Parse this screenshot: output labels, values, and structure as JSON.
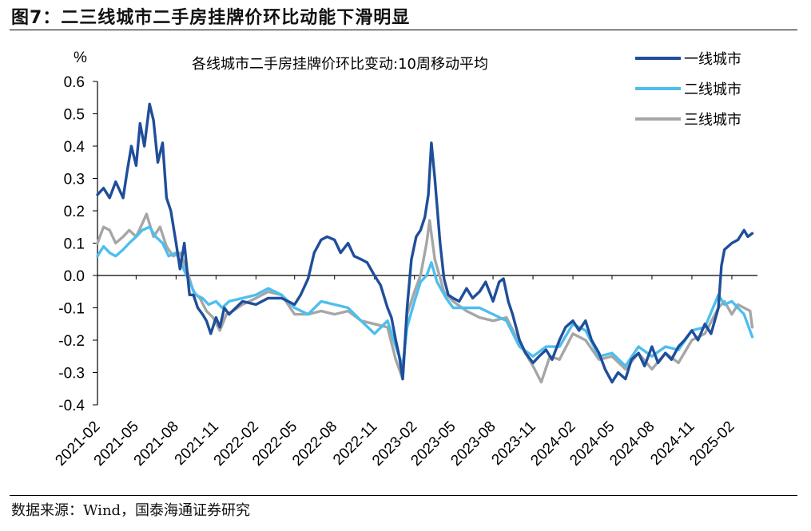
{
  "figure": {
    "title": "图7：二三线城市二手房挂牌价环比动能下滑明显",
    "source": "数据来源：Wind，国泰海通证券研究"
  },
  "chart_data": {
    "type": "line",
    "title": "各线城市二手房挂牌价环比变动:10周移动平均",
    "ylabel": "%",
    "ylim": [
      -0.4,
      0.6
    ],
    "yticks": [
      "0.6",
      "0.5",
      "0.4",
      "0.3",
      "0.2",
      "0.1",
      "0.0",
      "-0.1",
      "-0.2",
      "-0.3",
      "-0.4"
    ],
    "xlim": [
      "2021-02",
      "2025-04"
    ],
    "xticks": [
      "2021-02",
      "2021-05",
      "2021-08",
      "2021-11",
      "2022-02",
      "2022-05",
      "2022-08",
      "2022-11",
      "2023-02",
      "2023-05",
      "2023-08",
      "2023-11",
      "2024-02",
      "2024-05",
      "2024-08",
      "2024-11",
      "2025-02"
    ],
    "legend_position": "top-right",
    "grid": false,
    "series": [
      {
        "name": "一线城市",
        "color": "#1F4E9A",
        "points": [
          [
            "2021-02-01",
            0.25
          ],
          [
            "2021-02-15",
            0.27
          ],
          [
            "2021-03-01",
            0.24
          ],
          [
            "2021-03-15",
            0.29
          ],
          [
            "2021-04-01",
            0.24
          ],
          [
            "2021-04-10",
            0.32
          ],
          [
            "2021-04-20",
            0.4
          ],
          [
            "2021-05-01",
            0.34
          ],
          [
            "2021-05-10",
            0.47
          ],
          [
            "2021-05-20",
            0.4
          ],
          [
            "2021-06-01",
            0.53
          ],
          [
            "2021-06-10",
            0.48
          ],
          [
            "2021-06-20",
            0.35
          ],
          [
            "2021-07-01",
            0.41
          ],
          [
            "2021-07-10",
            0.24
          ],
          [
            "2021-07-20",
            0.2
          ],
          [
            "2021-08-01",
            0.1
          ],
          [
            "2021-08-10",
            0.02
          ],
          [
            "2021-08-20",
            0.1
          ],
          [
            "2021-09-01",
            -0.06
          ],
          [
            "2021-09-10",
            -0.06
          ],
          [
            "2021-09-20",
            -0.1
          ],
          [
            "2021-10-01",
            -0.12
          ],
          [
            "2021-10-10",
            -0.14
          ],
          [
            "2021-10-20",
            -0.18
          ],
          [
            "2021-11-01",
            -0.13
          ],
          [
            "2021-11-10",
            -0.16
          ],
          [
            "2021-11-20",
            -0.1
          ],
          [
            "2021-12-01",
            -0.12
          ],
          [
            "2022-01-01",
            -0.08
          ],
          [
            "2022-02-01",
            -0.09
          ],
          [
            "2022-03-01",
            -0.07
          ],
          [
            "2022-04-01",
            -0.07
          ],
          [
            "2022-05-01",
            -0.09
          ],
          [
            "2022-05-15",
            -0.06
          ],
          [
            "2022-06-01",
            -0.01
          ],
          [
            "2022-06-15",
            0.07
          ],
          [
            "2022-07-01",
            0.11
          ],
          [
            "2022-07-15",
            0.12
          ],
          [
            "2022-08-01",
            0.11
          ],
          [
            "2022-08-15",
            0.07
          ],
          [
            "2022-09-01",
            0.1
          ],
          [
            "2022-09-15",
            0.06
          ],
          [
            "2022-10-01",
            0.05
          ],
          [
            "2022-10-15",
            0.04
          ],
          [
            "2022-11-01",
            0.0
          ],
          [
            "2022-11-15",
            -0.03
          ],
          [
            "2022-12-01",
            -0.1
          ],
          [
            "2022-12-10",
            -0.13
          ],
          [
            "2022-12-20",
            -0.2
          ],
          [
            "2022-12-28",
            -0.25
          ],
          [
            "2023-01-05",
            -0.32
          ],
          [
            "2023-01-15",
            -0.1
          ],
          [
            "2023-01-25",
            0.05
          ],
          [
            "2023-02-05",
            0.12
          ],
          [
            "2023-02-15",
            0.14
          ],
          [
            "2023-02-25",
            0.18
          ],
          [
            "2023-03-05",
            0.25
          ],
          [
            "2023-03-12",
            0.41
          ],
          [
            "2023-03-20",
            0.3
          ],
          [
            "2023-04-01",
            0.1
          ],
          [
            "2023-04-10",
            -0.01
          ],
          [
            "2023-04-20",
            -0.06
          ],
          [
            "2023-05-01",
            -0.07
          ],
          [
            "2023-05-15",
            -0.08
          ],
          [
            "2023-06-01",
            -0.04
          ],
          [
            "2023-06-15",
            -0.07
          ],
          [
            "2023-07-01",
            -0.05
          ],
          [
            "2023-07-15",
            -0.02
          ],
          [
            "2023-08-01",
            -0.08
          ],
          [
            "2023-08-15",
            -0.02
          ],
          [
            "2023-08-25",
            -0.01
          ],
          [
            "2023-09-05",
            -0.08
          ],
          [
            "2023-09-15",
            -0.12
          ],
          [
            "2023-10-01",
            -0.2
          ],
          [
            "2023-10-15",
            -0.24
          ],
          [
            "2023-11-01",
            -0.27
          ],
          [
            "2023-11-15",
            -0.25
          ],
          [
            "2023-12-01",
            -0.23
          ],
          [
            "2023-12-15",
            -0.26
          ],
          [
            "2024-01-01",
            -0.2
          ],
          [
            "2024-01-15",
            -0.16
          ],
          [
            "2024-02-01",
            -0.14
          ],
          [
            "2024-02-15",
            -0.17
          ],
          [
            "2024-03-01",
            -0.14
          ],
          [
            "2024-03-15",
            -0.2
          ],
          [
            "2024-04-01",
            -0.24
          ],
          [
            "2024-04-15",
            -0.29
          ],
          [
            "2024-05-01",
            -0.33
          ],
          [
            "2024-05-15",
            -0.3
          ],
          [
            "2024-06-01",
            -0.32
          ],
          [
            "2024-06-15",
            -0.26
          ],
          [
            "2024-07-01",
            -0.24
          ],
          [
            "2024-07-15",
            -0.28
          ],
          [
            "2024-08-01",
            -0.22
          ],
          [
            "2024-08-15",
            -0.27
          ],
          [
            "2024-09-01",
            -0.24
          ],
          [
            "2024-09-15",
            -0.26
          ],
          [
            "2024-10-01",
            -0.22
          ],
          [
            "2024-10-15",
            -0.2
          ],
          [
            "2024-11-01",
            -0.17
          ],
          [
            "2024-11-15",
            -0.2
          ],
          [
            "2024-12-01",
            -0.15
          ],
          [
            "2024-12-15",
            -0.18
          ],
          [
            "2025-01-01",
            -0.1
          ],
          [
            "2025-01-08",
            0.03
          ],
          [
            "2025-01-15",
            0.08
          ],
          [
            "2025-02-01",
            0.1
          ],
          [
            "2025-02-15",
            0.11
          ],
          [
            "2025-03-01",
            0.14
          ],
          [
            "2025-03-10",
            0.12
          ],
          [
            "2025-03-20",
            0.13
          ]
        ]
      },
      {
        "name": "二线城市",
        "color": "#4DBEEE",
        "points": [
          [
            "2021-02-01",
            0.06
          ],
          [
            "2021-02-15",
            0.09
          ],
          [
            "2021-03-01",
            0.07
          ],
          [
            "2021-03-15",
            0.06
          ],
          [
            "2021-04-01",
            0.08
          ],
          [
            "2021-04-15",
            0.1
          ],
          [
            "2021-05-01",
            0.12
          ],
          [
            "2021-05-15",
            0.14
          ],
          [
            "2021-06-01",
            0.15
          ],
          [
            "2021-06-15",
            0.12
          ],
          [
            "2021-07-01",
            0.1
          ],
          [
            "2021-07-15",
            0.06
          ],
          [
            "2021-08-01",
            0.07
          ],
          [
            "2021-08-15",
            0.03
          ],
          [
            "2021-09-01",
            -0.02
          ],
          [
            "2021-09-15",
            -0.06
          ],
          [
            "2021-10-01",
            -0.07
          ],
          [
            "2021-10-15",
            -0.09
          ],
          [
            "2021-11-01",
            -0.08
          ],
          [
            "2021-11-15",
            -0.1
          ],
          [
            "2021-12-01",
            -0.08
          ],
          [
            "2022-01-01",
            -0.07
          ],
          [
            "2022-02-01",
            -0.06
          ],
          [
            "2022-03-01",
            -0.04
          ],
          [
            "2022-04-01",
            -0.06
          ],
          [
            "2022-05-01",
            -0.1
          ],
          [
            "2022-06-01",
            -0.12
          ],
          [
            "2022-07-01",
            -0.08
          ],
          [
            "2022-08-01",
            -0.09
          ],
          [
            "2022-09-01",
            -0.1
          ],
          [
            "2022-10-01",
            -0.14
          ],
          [
            "2022-11-01",
            -0.18
          ],
          [
            "2022-12-01",
            -0.14
          ],
          [
            "2022-12-20",
            -0.22
          ],
          [
            "2023-01-05",
            -0.28
          ],
          [
            "2023-01-15",
            -0.16
          ],
          [
            "2023-02-01",
            -0.08
          ],
          [
            "2023-02-15",
            -0.02
          ],
          [
            "2023-03-01",
            0.0
          ],
          [
            "2023-03-12",
            0.04
          ],
          [
            "2023-03-25",
            -0.02
          ],
          [
            "2023-04-15",
            -0.07
          ],
          [
            "2023-05-01",
            -0.1
          ],
          [
            "2023-06-01",
            -0.1
          ],
          [
            "2023-07-01",
            -0.1
          ],
          [
            "2023-08-01",
            -0.12
          ],
          [
            "2023-09-01",
            -0.14
          ],
          [
            "2023-10-01",
            -0.22
          ],
          [
            "2023-11-01",
            -0.25
          ],
          [
            "2023-12-01",
            -0.22
          ],
          [
            "2024-01-01",
            -0.22
          ],
          [
            "2024-02-01",
            -0.15
          ],
          [
            "2024-03-01",
            -0.17
          ],
          [
            "2024-04-01",
            -0.25
          ],
          [
            "2024-05-01",
            -0.24
          ],
          [
            "2024-06-01",
            -0.28
          ],
          [
            "2024-07-01",
            -0.22
          ],
          [
            "2024-08-01",
            -0.25
          ],
          [
            "2024-09-01",
            -0.22
          ],
          [
            "2024-10-01",
            -0.23
          ],
          [
            "2024-11-01",
            -0.17
          ],
          [
            "2024-12-01",
            -0.16
          ],
          [
            "2025-01-01",
            -0.06
          ],
          [
            "2025-01-15",
            -0.09
          ],
          [
            "2025-02-01",
            -0.08
          ],
          [
            "2025-02-15",
            -0.1
          ],
          [
            "2025-03-01",
            -0.12
          ],
          [
            "2025-03-20",
            -0.19
          ]
        ]
      },
      {
        "name": "三线城市",
        "color": "#A6A6A6",
        "points": [
          [
            "2021-02-01",
            0.1
          ],
          [
            "2021-02-15",
            0.15
          ],
          [
            "2021-03-01",
            0.14
          ],
          [
            "2021-03-15",
            0.1
          ],
          [
            "2021-04-01",
            0.12
          ],
          [
            "2021-04-15",
            0.14
          ],
          [
            "2021-05-01",
            0.12
          ],
          [
            "2021-05-15",
            0.16
          ],
          [
            "2021-05-25",
            0.19
          ],
          [
            "2021-06-10",
            0.12
          ],
          [
            "2021-06-25",
            0.15
          ],
          [
            "2021-07-10",
            0.09
          ],
          [
            "2021-07-25",
            0.06
          ],
          [
            "2021-08-10",
            0.07
          ],
          [
            "2021-08-25",
            0.02
          ],
          [
            "2021-09-10",
            -0.05
          ],
          [
            "2021-09-25",
            -0.07
          ],
          [
            "2021-10-10",
            -0.11
          ],
          [
            "2021-10-25",
            -0.13
          ],
          [
            "2021-11-10",
            -0.17
          ],
          [
            "2021-11-25",
            -0.12
          ],
          [
            "2021-12-10",
            -0.11
          ],
          [
            "2022-01-01",
            -0.09
          ],
          [
            "2022-02-01",
            -0.07
          ],
          [
            "2022-03-01",
            -0.05
          ],
          [
            "2022-04-01",
            -0.06
          ],
          [
            "2022-05-01",
            -0.12
          ],
          [
            "2022-06-01",
            -0.12
          ],
          [
            "2022-07-01",
            -0.11
          ],
          [
            "2022-08-01",
            -0.12
          ],
          [
            "2022-09-01",
            -0.11
          ],
          [
            "2022-10-01",
            -0.14
          ],
          [
            "2022-11-01",
            -0.15
          ],
          [
            "2022-12-01",
            -0.16
          ],
          [
            "2022-12-20",
            -0.26
          ],
          [
            "2023-01-05",
            -0.32
          ],
          [
            "2023-01-15",
            -0.12
          ],
          [
            "2023-02-01",
            -0.05
          ],
          [
            "2023-02-15",
            0.0
          ],
          [
            "2023-03-01",
            0.1
          ],
          [
            "2023-03-08",
            0.17
          ],
          [
            "2023-03-20",
            0.05
          ],
          [
            "2023-04-10",
            -0.05
          ],
          [
            "2023-05-01",
            -0.08
          ],
          [
            "2023-06-01",
            -0.11
          ],
          [
            "2023-07-01",
            -0.13
          ],
          [
            "2023-08-01",
            -0.14
          ],
          [
            "2023-09-01",
            -0.13
          ],
          [
            "2023-10-01",
            -0.21
          ],
          [
            "2023-11-01",
            -0.28
          ],
          [
            "2023-11-20",
            -0.33
          ],
          [
            "2023-12-10",
            -0.25
          ],
          [
            "2024-01-01",
            -0.26
          ],
          [
            "2024-02-01",
            -0.18
          ],
          [
            "2024-03-01",
            -0.2
          ],
          [
            "2024-04-01",
            -0.26
          ],
          [
            "2024-05-01",
            -0.25
          ],
          [
            "2024-06-01",
            -0.29
          ],
          [
            "2024-07-01",
            -0.24
          ],
          [
            "2024-08-01",
            -0.29
          ],
          [
            "2024-09-01",
            -0.24
          ],
          [
            "2024-10-01",
            -0.27
          ],
          [
            "2024-11-01",
            -0.2
          ],
          [
            "2024-12-01",
            -0.18
          ],
          [
            "2025-01-01",
            -0.1
          ],
          [
            "2025-01-15",
            -0.08
          ],
          [
            "2025-02-01",
            -0.12
          ],
          [
            "2025-02-15",
            -0.09
          ],
          [
            "2025-03-01",
            -0.1
          ],
          [
            "2025-03-15",
            -0.11
          ],
          [
            "2025-03-20",
            -0.16
          ]
        ]
      }
    ]
  }
}
